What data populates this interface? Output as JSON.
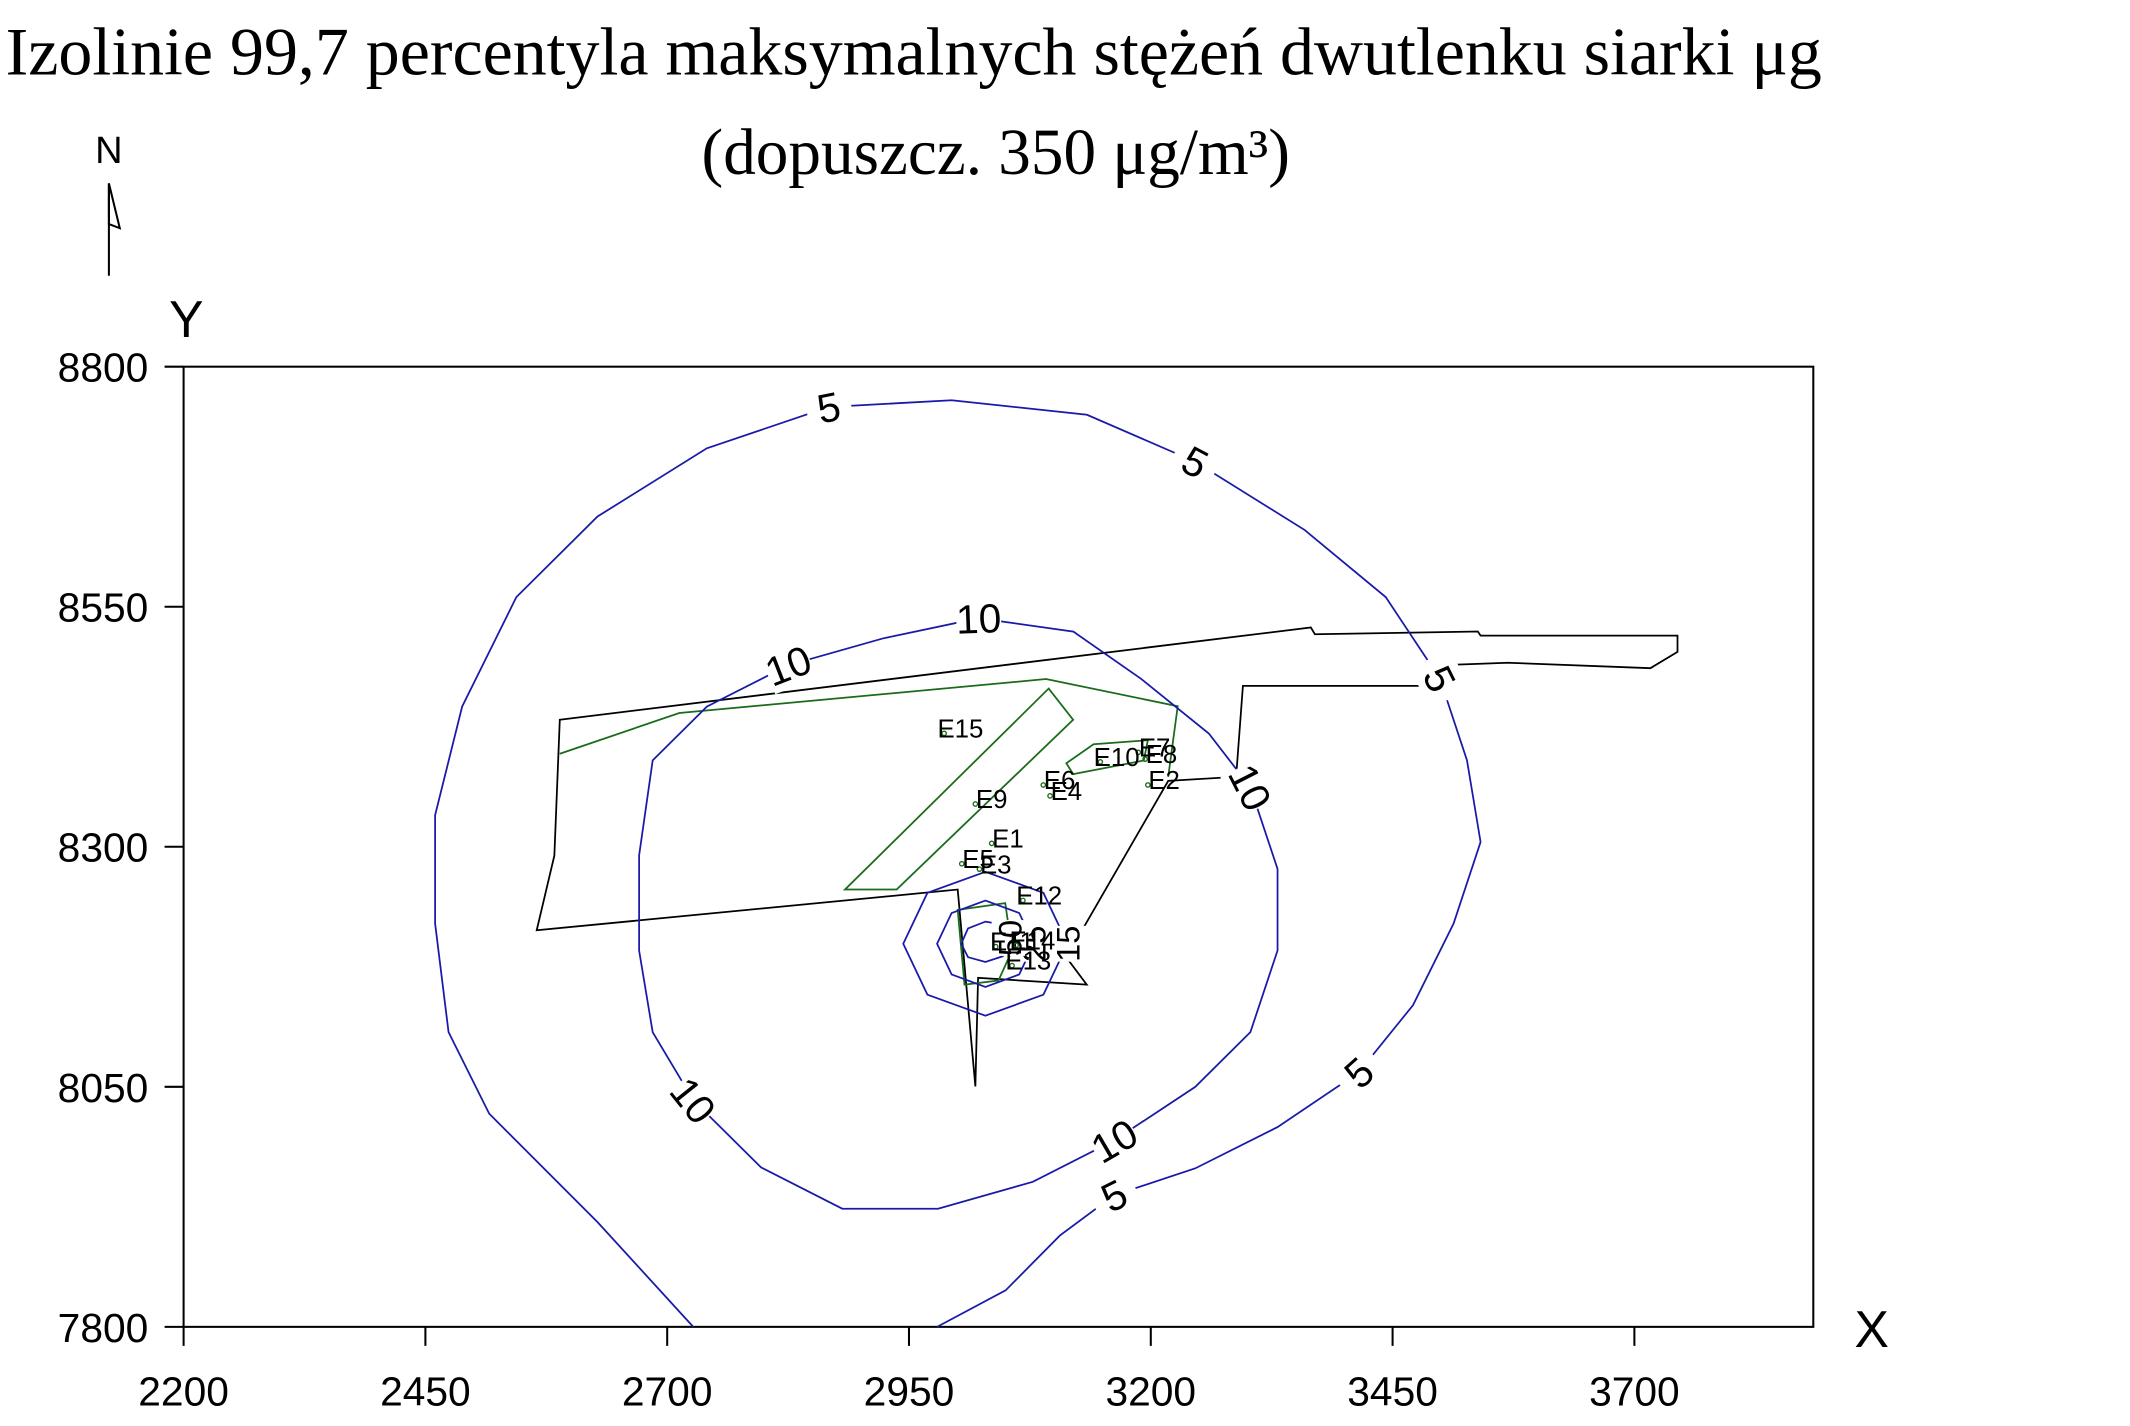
{
  "chart_data": {
    "type": "contour",
    "title": "Izolinie 99,7 percentyla maksymalnych stężeń dwutlenku siarki μg",
    "subtitle": "(dopuszcz. 350 μg/m³)",
    "north_label": "N",
    "xlabel": "X",
    "ylabel": "Y",
    "xlim": [
      2200,
      3885
    ],
    "ylim": [
      7800,
      8800
    ],
    "xticks": [
      2200,
      2450,
      2700,
      2950,
      3200,
      3450,
      3700
    ],
    "yticks": [
      7800,
      8050,
      8300,
      8550,
      8800
    ],
    "contour_color": "#1a1aa8",
    "contours": [
      {
        "level": 5,
        "closed": false,
        "x": [
          2727,
          2628,
          2516,
          2474,
          2460,
          2460,
          2488,
          2544,
          2628,
          2741,
          2867,
          2994,
          3134,
          3246,
          3359,
          3443,
          3499,
          3527,
          3541,
          3513,
          3471,
          3415,
          3331,
          3246,
          3162,
          3106,
          3050,
          2979
        ],
        "y": [
          7800,
          7909,
          8022,
          8107,
          8220,
          8333,
          8446,
          8560,
          8644,
          8715,
          8758,
          8765,
          8750,
          8701,
          8630,
          8560,
          8475,
          8390,
          8305,
          8220,
          8135,
          8065,
          8008,
          7965,
          7937,
          7895,
          7838,
          7800
        ]
      },
      {
        "level": 10,
        "closed": true,
        "x": [
          2685,
          2741,
          2825,
          2923,
          3022,
          3120,
          3190,
          3260,
          3303,
          3331,
          3331,
          3303,
          3246,
          3162,
          3078,
          2980,
          2881,
          2797,
          2727,
          2685,
          2671,
          2671
        ],
        "y": [
          8390,
          8446,
          8489,
          8517,
          8538,
          8524,
          8475,
          8418,
          8362,
          8277,
          8192,
          8107,
          8050,
          7994,
          7951,
          7923,
          7923,
          7966,
          8036,
          8107,
          8192,
          8291
        ]
      },
      {
        "level": 15,
        "closed": true,
        "x": [
          3114,
          3089,
          3029,
          2969,
          2944,
          2969,
          3029,
          3089
        ],
        "y": [
          8199,
          8252,
          8274,
          8252,
          8199,
          8146,
          8124,
          8146
        ]
      },
      {
        "level": 25,
        "closed": true,
        "x": [
          3079,
          3064,
          3029,
          2994,
          2979,
          2994,
          3029,
          3064
        ],
        "y": [
          8199,
          8231,
          8244,
          8231,
          8199,
          8167,
          8154,
          8167
        ]
      },
      {
        "level": 50,
        "closed": true,
        "x": [
          3054,
          3047,
          3029,
          3011,
          3004,
          3011,
          3029,
          3047
        ],
        "y": [
          8205,
          8219,
          8222,
          8215,
          8199,
          8185,
          8180,
          8186
        ]
      }
    ],
    "emitters": [
      "E1",
      "E2",
      "E3",
      "E4",
      "E5",
      "E6",
      "E7",
      "E8",
      "E9",
      "E10",
      "E11",
      "E12",
      "E13",
      "E14",
      "E15"
    ]
  }
}
